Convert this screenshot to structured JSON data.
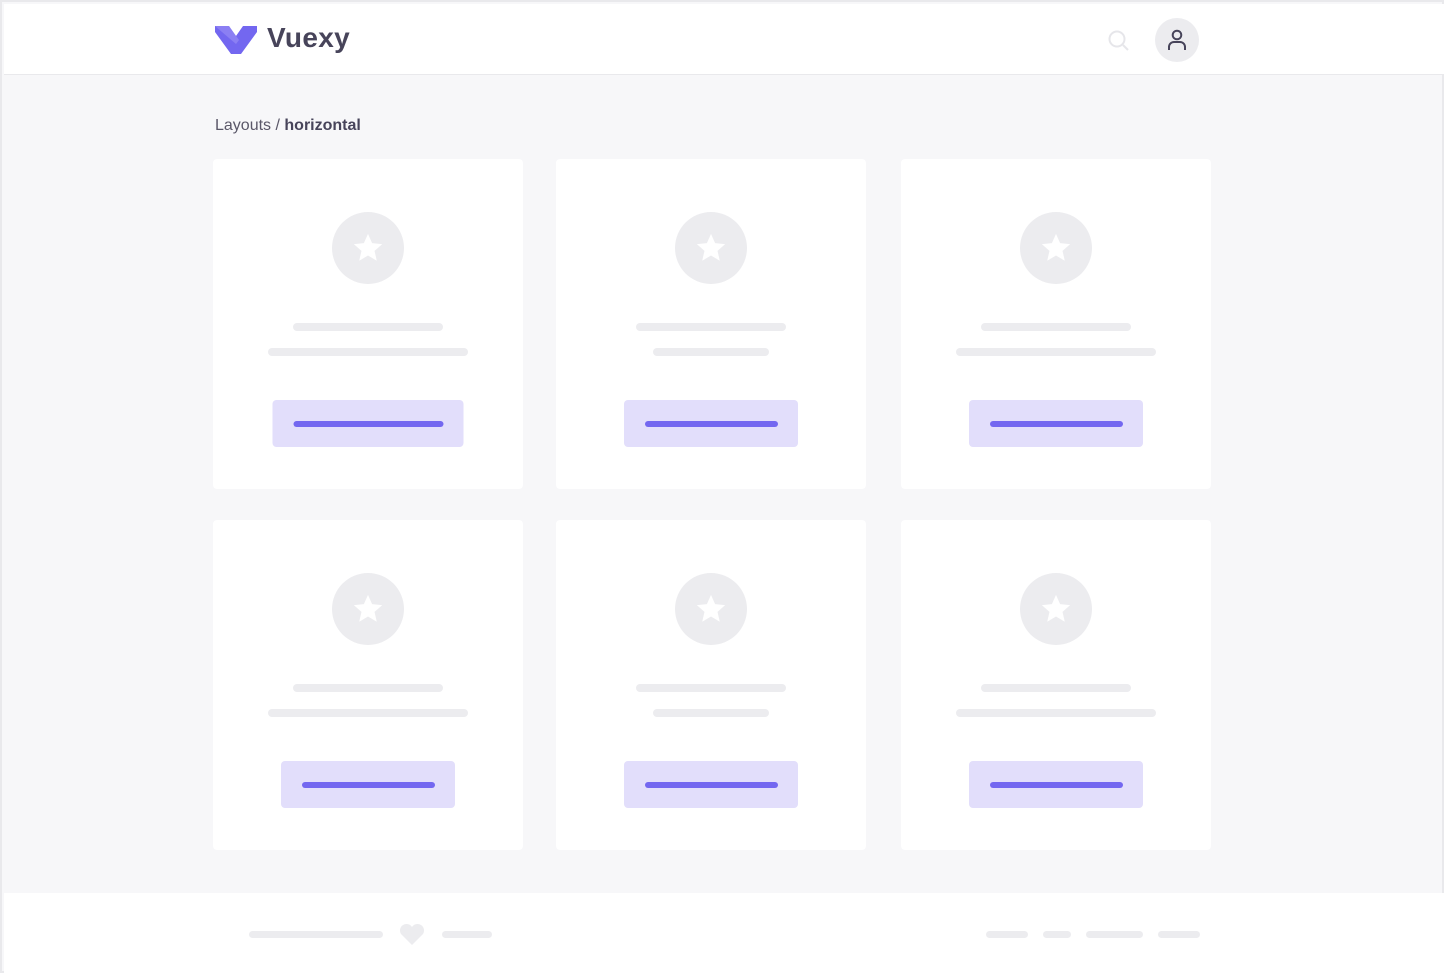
{
  "header": {
    "brand": "Vuexy",
    "logo_color": "#7367f0",
    "search_icon": "search-icon",
    "avatar_icon": "user-icon"
  },
  "breadcrumb": {
    "parent": "Layouts",
    "separator": " / ",
    "current": "horizontal"
  },
  "cards": [
    {
      "icon": "star-icon"
    },
    {
      "icon": "star-icon"
    },
    {
      "icon": "star-icon"
    },
    {
      "icon": "star-icon"
    },
    {
      "icon": "star-icon"
    },
    {
      "icon": "star-icon"
    }
  ],
  "footer": {
    "icon": "heart-icon"
  },
  "colors": {
    "accent": "#7367f0",
    "accent_light": "#e2defb",
    "placeholder": "#ececef",
    "background": "#f7f7f9"
  }
}
